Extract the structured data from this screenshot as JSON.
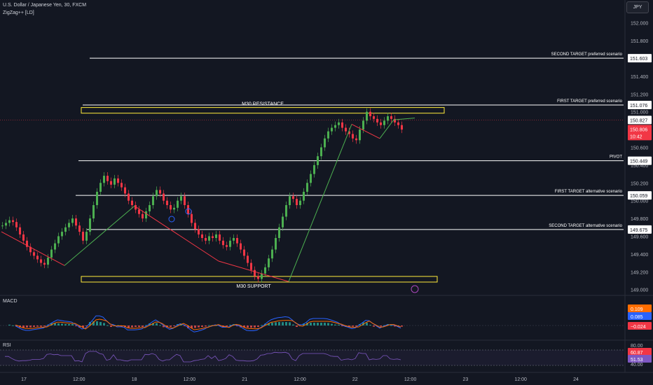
{
  "header": {
    "symbol": "U.S. Dollar / Japanese Yen, 30, FXCM",
    "indicator": "ZigZag++ [LD]",
    "currency_button": "JPY"
  },
  "colors": {
    "background": "#131722",
    "up": "#22ab94",
    "down": "#f23645",
    "candle_up": "#4caf50",
    "zigzag_up": "#4caf50",
    "zigzag_down": "#f23645",
    "level_line": "#ffffff",
    "zone": "#ffeb3b",
    "macd_line": "#2962ff",
    "signal_line": "#ff6d00",
    "rsi_line": "#7e57c2"
  },
  "chart_data": {
    "type": "candlestick",
    "price_axis": {
      "min": 148.95,
      "max": 152.1,
      "ticks": [
        "152.000",
        "151.800",
        "151.400",
        "151.200",
        "151.000",
        "150.600",
        "150.400",
        "150.200",
        "150.000",
        "149.800",
        "149.600",
        "149.400",
        "149.200",
        "149.000"
      ]
    },
    "time_axis": [
      "17",
      "12:00",
      "18",
      "12:00",
      "21",
      "12:00",
      "22",
      "12:00",
      "23",
      "12:00",
      "24"
    ],
    "levels": [
      {
        "label": "SECOND TARGET preferred scenario",
        "price": 151.603,
        "price_label": "151.603"
      },
      {
        "label": "FIRST TARGET preferred scenario",
        "price": 151.076,
        "price_label": "151.076"
      },
      {
        "label": "PIVOT",
        "price": 150.449,
        "price_label": "150.449"
      },
      {
        "label": "FIRST TARGET alternative scenario",
        "price": 150.059,
        "price_label": "150.059"
      },
      {
        "label": "SECOND TARGET alternative scenario",
        "price": 149.675,
        "price_label": "149.675"
      }
    ],
    "zones": [
      {
        "label": "M30 RESISTANCE",
        "top": 151.04,
        "bottom": 151.0
      },
      {
        "label": "M30 SUPPORT",
        "top": 149.14,
        "bottom": 149.1
      }
    ],
    "current_price": {
      "value": "150.806",
      "countdown": "10:42",
      "secondary": "150.827"
    },
    "zigzag": [
      [
        0,
        149.65
      ],
      [
        18,
        149.27
      ],
      [
        38,
        149.94
      ],
      [
        62,
        149.32
      ],
      [
        82,
        149.09
      ],
      [
        100,
        150.86
      ],
      [
        108,
        150.7
      ],
      [
        112,
        150.91
      ],
      [
        118,
        150.93
      ]
    ],
    "candles_close": [
      149.72,
      149.75,
      149.78,
      149.76,
      149.7,
      149.62,
      149.55,
      149.48,
      149.42,
      149.38,
      149.34,
      149.3,
      149.28,
      149.36,
      149.45,
      149.52,
      149.6,
      149.65,
      149.7,
      149.75,
      149.8,
      149.72,
      149.65,
      149.55,
      149.65,
      149.8,
      149.95,
      150.1,
      150.2,
      150.28,
      150.22,
      150.18,
      150.25,
      150.2,
      150.15,
      150.08,
      150.0,
      149.95,
      149.9,
      149.85,
      149.8,
      149.88,
      149.95,
      150.05,
      150.12,
      150.08,
      150.0,
      149.95,
      149.9,
      149.92,
      150.0,
      150.05,
      149.95,
      149.85,
      149.75,
      149.68,
      149.62,
      149.58,
      149.55,
      149.6,
      149.58,
      149.62,
      149.55,
      149.5,
      149.48,
      149.55,
      149.58,
      149.52,
      149.45,
      149.38,
      149.3,
      149.22,
      149.15,
      149.12,
      149.18,
      149.25,
      149.35,
      149.45,
      149.58,
      149.7,
      149.82,
      149.95,
      150.05,
      150.02,
      149.95,
      150.0,
      150.1,
      150.2,
      150.3,
      150.4,
      150.5,
      150.6,
      150.7,
      150.78,
      150.82,
      150.85,
      150.88,
      150.82,
      150.78,
      150.75,
      150.7,
      150.68,
      150.8,
      150.9,
      151.0,
      150.95,
      150.92,
      150.88,
      150.85,
      150.9,
      150.95,
      150.92,
      150.88,
      150.85,
      150.8
    ],
    "macd": {
      "label": "MACD",
      "value_labels": [
        "0.109",
        "0.085",
        "−0.024"
      ],
      "value_colors": [
        "#ff6d00",
        "#2962ff",
        "#f23645"
      ]
    },
    "rsi": {
      "label": "RSI",
      "ticks": [
        "80.00",
        "40.00"
      ],
      "value_labels": [
        "60.87",
        "51.53"
      ],
      "value_colors": [
        "#f23645",
        "#7e57c2"
      ]
    }
  }
}
